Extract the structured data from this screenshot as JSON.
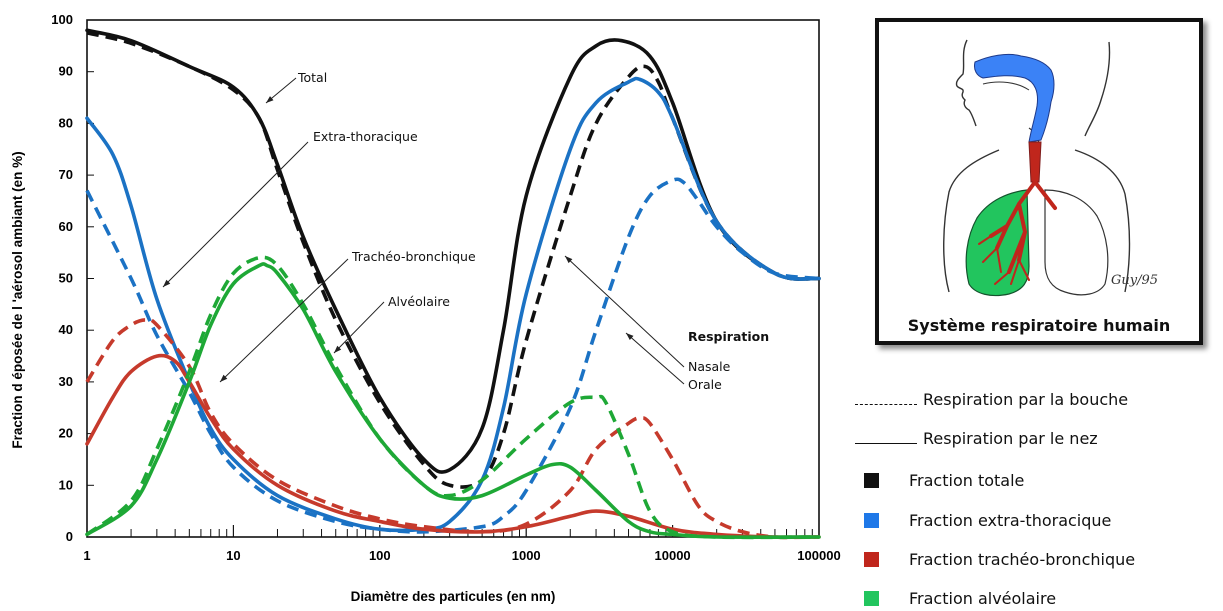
{
  "chart_data": {
    "type": "line",
    "xlabel": "Diamètre des particules (en nm)",
    "ylabel": "Fraction d éposée de l 'aérosol ambiant (en %)",
    "xscale": "log",
    "xlim": [
      1,
      100000
    ],
    "ylim": [
      0,
      100
    ],
    "x_ticks": [
      "1",
      "10",
      "100",
      "1000",
      "10000",
      "100000"
    ],
    "y_ticks": [
      "0",
      "10",
      "20",
      "30",
      "40",
      "50",
      "60",
      "70",
      "80",
      "90",
      "100"
    ],
    "grid": false,
    "series": [
      {
        "name": "Fraction totale",
        "style": "solid",
        "color": "#111111",
        "x": [
          1,
          2,
          5,
          10,
          15,
          20,
          30,
          50,
          100,
          200,
          300,
          500,
          700,
          1000,
          2000,
          3000,
          4500,
          7000,
          10000,
          20000,
          50000,
          100000
        ],
        "y": [
          98,
          96,
          91,
          87,
          81,
          72,
          58,
          44,
          27,
          15,
          13,
          21,
          40,
          66,
          89,
          95,
          96,
          93,
          84,
          61,
          51,
          50
        ]
      },
      {
        "name": "Fraction totale",
        "style": "dashed",
        "color": "#111111",
        "x": [
          1,
          2,
          5,
          10,
          15,
          20,
          30,
          50,
          100,
          200,
          300,
          500,
          700,
          1000,
          2000,
          3000,
          5000,
          6500,
          8000,
          10000,
          20000,
          50000,
          100000
        ],
        "y": [
          97.5,
          95.5,
          91,
          86.5,
          81,
          71,
          57,
          42,
          26,
          14,
          10,
          11,
          20,
          38,
          66,
          80,
          89,
          91,
          88,
          81,
          61,
          51,
          50
        ]
      },
      {
        "name": "Fraction extra-thoracique",
        "style": "solid",
        "color": "#1b72c4",
        "x": [
          1,
          1.5,
          2,
          3,
          5,
          7,
          10,
          20,
          50,
          100,
          200,
          300,
          500,
          700,
          1000,
          2000,
          3000,
          5000,
          6000,
          8000,
          10000,
          20000,
          50000,
          100000
        ],
        "y": [
          81,
          74,
          64,
          46,
          30,
          21,
          15,
          8,
          3.5,
          1.5,
          1.5,
          3,
          11,
          25,
          47,
          75,
          84,
          88,
          88.5,
          86,
          81,
          61,
          51,
          50
        ]
      },
      {
        "name": "Fraction extra-thoracique",
        "style": "dashed",
        "color": "#1b72c4",
        "x": [
          1,
          2,
          3,
          5,
          7,
          10,
          20,
          50,
          100,
          200,
          500,
          700,
          1000,
          2000,
          3000,
          5000,
          7000,
          10000,
          12000,
          15000,
          20000,
          30000,
          50000,
          100000
        ],
        "y": [
          67,
          50,
          39,
          28,
          20,
          13.5,
          7,
          3,
          1.5,
          1,
          2,
          4,
          9,
          25,
          40,
          58,
          66,
          69,
          68.5,
          65,
          60,
          55,
          51,
          50
        ]
      },
      {
        "name": "Fraction trachéo-bronchique",
        "style": "solid",
        "color": "#c63a2c",
        "x": [
          1,
          1.5,
          2,
          3,
          4,
          5,
          7,
          10,
          20,
          50,
          100,
          200,
          500,
          1000,
          2000,
          3000,
          5000,
          10000,
          20000,
          50000,
          100000
        ],
        "y": [
          18,
          27,
          32,
          35,
          34,
          30,
          23,
          17,
          10,
          5,
          3,
          1.5,
          1,
          2,
          4,
          5,
          4,
          1.5,
          0.5,
          0,
          0
        ]
      },
      {
        "name": "Fraction trachéo-bronchique",
        "style": "dashed",
        "color": "#c63a2c",
        "x": [
          1,
          1.5,
          2,
          2.5,
          3,
          5,
          7,
          10,
          20,
          50,
          100,
          200,
          500,
          1000,
          2000,
          3000,
          5000,
          6000,
          7000,
          10000,
          15000,
          20000,
          30000,
          50000,
          100000
        ],
        "y": [
          30,
          38,
          41,
          42,
          41,
          33,
          24,
          18,
          11,
          6,
          3.5,
          2,
          1,
          2.5,
          9,
          17,
          22,
          23,
          22,
          15,
          6,
          3,
          1,
          0,
          0
        ]
      },
      {
        "name": "Fraction alvéolaire",
        "style": "solid",
        "color": "#1ea836",
        "x": [
          1,
          2,
          3,
          5,
          7,
          10,
          15,
          17,
          20,
          30,
          50,
          100,
          200,
          300,
          500,
          1000,
          1500,
          2000,
          3000,
          5000,
          7000,
          10000,
          20000,
          100000
        ],
        "y": [
          0.5,
          6,
          15,
          30,
          41,
          49,
          52.5,
          52.5,
          51,
          44,
          32,
          19,
          10,
          7.5,
          8,
          12,
          14,
          13.5,
          9,
          3,
          1,
          0.5,
          0,
          0
        ]
      },
      {
        "name": "Fraction alvéolaire",
        "style": "dashed",
        "color": "#1ea836",
        "x": [
          1,
          2,
          3,
          5,
          7,
          10,
          15,
          20,
          30,
          50,
          100,
          200,
          300,
          500,
          1000,
          2000,
          3000,
          3500,
          5000,
          7000,
          10000,
          20000,
          100000
        ],
        "y": [
          0.5,
          7,
          17,
          32,
          43,
          51,
          54,
          52.5,
          45,
          33,
          19,
          10,
          8,
          11,
          19,
          26,
          27,
          26,
          16,
          5,
          1,
          0,
          0
        ]
      }
    ],
    "annotations": [
      {
        "text": "Total",
        "bold": false
      },
      {
        "text": "Extra-thoracique",
        "bold": false
      },
      {
        "text": "Trachéo-bronchique",
        "bold": false
      },
      {
        "text": "Alvéolaire",
        "bold": false
      },
      {
        "text": "Respiration",
        "bold": true
      },
      {
        "text": "Nasale",
        "bold": false
      },
      {
        "text": "Orale",
        "bold": false
      }
    ]
  },
  "inset": {
    "caption": "Système respiratoire humain",
    "signature": "Guy/95"
  },
  "legend": {
    "items": [
      {
        "label": "Respiration par la bouche",
        "kind": "dashed"
      },
      {
        "label": "Respiration par le nez",
        "kind": "solid"
      },
      {
        "label": "Fraction totale",
        "kind": "swatch",
        "color": "#111111"
      },
      {
        "label": "Fraction extra-thoracique",
        "kind": "swatch",
        "color": "#1e78e8"
      },
      {
        "label": "Fraction trachéo-bronchique",
        "kind": "swatch",
        "color": "#c0261c"
      },
      {
        "label": "Fraction alvéolaire",
        "kind": "swatch",
        "color": "#22c55e"
      }
    ]
  }
}
